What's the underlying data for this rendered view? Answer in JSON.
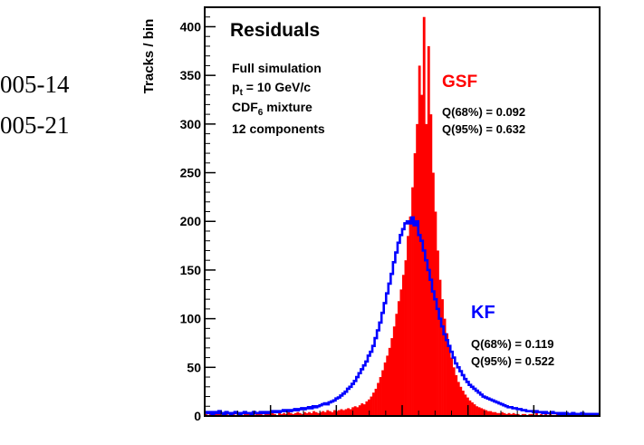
{
  "side_text": [
    "005-14",
    "005-21"
  ],
  "chart_data": {
    "type": "histogram",
    "title": "Residuals",
    "ylabel": "Tracks / bin",
    "xlabel": "",
    "ylim": [
      0,
      420
    ],
    "y_ticks": [
      0,
      50,
      100,
      150,
      200,
      250,
      300,
      350,
      400
    ],
    "info_lines": [
      "Full simulation",
      "p_t = 10 GeV/c",
      "CDF_6 mixture",
      "12 components"
    ],
    "grid": false,
    "series": [
      {
        "name": "GSF",
        "color": "#ff0000",
        "style": "filled",
        "stats": [
          "Q(68%) = 0.092",
          "Q(95%) = 0.632"
        ],
        "values": [
          2,
          1,
          3,
          1,
          2,
          4,
          2,
          1,
          3,
          2,
          1,
          2,
          3,
          1,
          2,
          2,
          1,
          3,
          2,
          4,
          2,
          1,
          3,
          2,
          2,
          1,
          3,
          2,
          2,
          3,
          2,
          1,
          3,
          2,
          3,
          2,
          4,
          3,
          2,
          3,
          4,
          3,
          2,
          4,
          3,
          4,
          3,
          5,
          4,
          3,
          4,
          5,
          4,
          6,
          5,
          4,
          6,
          5,
          6,
          7,
          6,
          7,
          8,
          7,
          9,
          10,
          9,
          11,
          13,
          12,
          15,
          17,
          20,
          24,
          28,
          34,
          40,
          47,
          55,
          62,
          70,
          80,
          92,
          105,
          118,
          130,
          145,
          160,
          185,
          205,
          235,
          270,
          300,
          360,
          330,
          410,
          300,
          380,
          310,
          250,
          210,
          170,
          140,
          120,
          100,
          85,
          72,
          60,
          50,
          42,
          35,
          30,
          26,
          22,
          19,
          16,
          14,
          12,
          10,
          9,
          8,
          7,
          6,
          5,
          5,
          4,
          4,
          3,
          3,
          4,
          3,
          2,
          3,
          2,
          3,
          2,
          2,
          1,
          2,
          2,
          1,
          2,
          2,
          1,
          3,
          1,
          2,
          1,
          2,
          1,
          2,
          1,
          1,
          2,
          1,
          1,
          2,
          1,
          1,
          2,
          1,
          1,
          2,
          1,
          1,
          1,
          2,
          1,
          1,
          1,
          2,
          1
        ]
      },
      {
        "name": "KF",
        "color": "#0000ff",
        "style": "outline",
        "stats": [
          "Q(68%) = 0.119",
          "Q(95%) = 0.522"
        ],
        "values": [
          4,
          3,
          4,
          2,
          4,
          3,
          5,
          3,
          2,
          4,
          3,
          2,
          3,
          4,
          3,
          2,
          3,
          4,
          3,
          3,
          2,
          4,
          3,
          3,
          4,
          3,
          4,
          3,
          4,
          5,
          4,
          5,
          4,
          5,
          6,
          5,
          6,
          5,
          6,
          7,
          6,
          7,
          8,
          7,
          8,
          9,
          8,
          10,
          9,
          10,
          11,
          12,
          13,
          12,
          14,
          15,
          16,
          18,
          19,
          21,
          23,
          25,
          28,
          30,
          33,
          36,
          40,
          44,
          48,
          52,
          56,
          62,
          66,
          72,
          80,
          88,
          96,
          106,
          116,
          126,
          136,
          146,
          158,
          168,
          178,
          186,
          192,
          198,
          200,
          198,
          204,
          196,
          200,
          186,
          180,
          170,
          160,
          150,
          140,
          128,
          120,
          110,
          100,
          92,
          84,
          78,
          72,
          66,
          60,
          54,
          50,
          46,
          42,
          38,
          35,
          32,
          30,
          28,
          26,
          24,
          22,
          20,
          19,
          18,
          17,
          16,
          15,
          14,
          13,
          12,
          11,
          10,
          9,
          9,
          8,
          8,
          7,
          7,
          6,
          6,
          5,
          5,
          5,
          4,
          5,
          4,
          4,
          3,
          4,
          3,
          3,
          4,
          3,
          3,
          2,
          3,
          2,
          3,
          2,
          2,
          3,
          2,
          2,
          2,
          3,
          2,
          2,
          1,
          2,
          2,
          1,
          2
        ]
      }
    ]
  }
}
